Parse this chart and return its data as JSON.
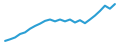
{
  "y_values": [
    0.5,
    1.2,
    2.0,
    3.5,
    4.2,
    5.8,
    7.0,
    8.0,
    9.2,
    9.8,
    9.0,
    9.8,
    9.0,
    9.8,
    8.5,
    9.5,
    8.2,
    9.8,
    11.5,
    13.5,
    15.8,
    14.5,
    16.5
  ],
  "line_color": "#2b9fd4",
  "background_color": "#ffffff",
  "linewidth": 1.5
}
